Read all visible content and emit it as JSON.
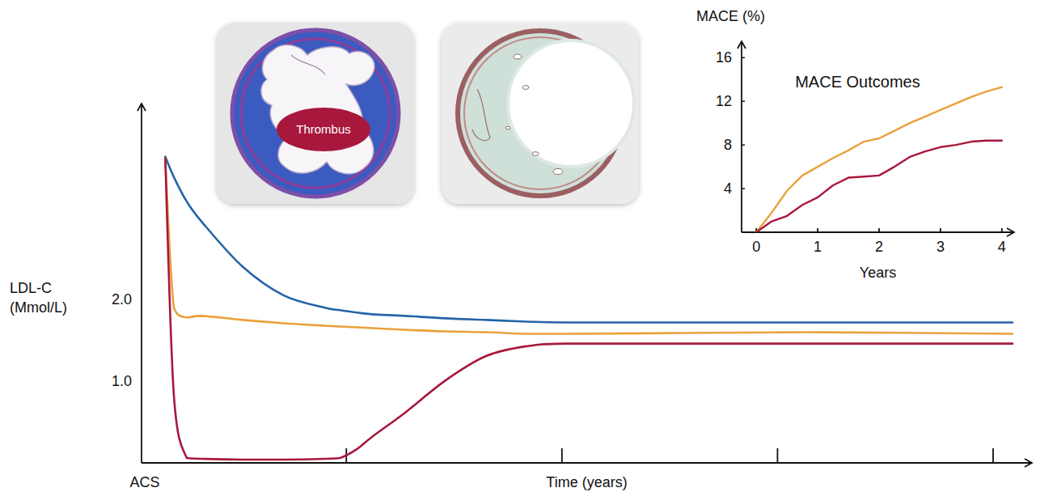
{
  "chart_data": [
    {
      "type": "line",
      "x_label": "Time (years)",
      "y_label": "LDL-C (Mmol/L)",
      "annotations": [
        "ACS"
      ],
      "x": [
        0.16,
        0.2,
        0.26,
        0.33,
        0.52,
        0.71,
        0.9,
        0.97,
        1.05,
        1.12,
        1.27,
        1.46,
        1.65,
        1.84,
        2.02,
        2.55,
        3.15,
        4.09
      ],
      "series": [
        {
          "color": "#2565a8",
          "values": [
            3.75,
            3.5,
            3.2,
            2.95,
            2.4,
            2.05,
            1.9,
            1.87,
            1.84,
            1.82,
            1.8,
            1.77,
            1.75,
            1.73,
            1.72,
            1.72,
            1.72,
            1.72
          ]
        },
        {
          "color": "#e9a13b",
          "values": [
            3.73,
            1.9,
            1.78,
            1.8,
            1.75,
            1.71,
            1.68,
            1.67,
            1.66,
            1.65,
            1.63,
            1.61,
            1.6,
            1.58,
            1.58,
            1.59,
            1.6,
            1.58
          ]
        },
        {
          "color": "#a8183c",
          "values": [
            3.73,
            0.83,
            0.06,
            0.05,
            0.04,
            0.04,
            0.05,
            0.06,
            0.17,
            0.32,
            0.61,
            1.01,
            1.31,
            1.43,
            1.46,
            1.46,
            1.46,
            1.46
          ]
        }
      ],
      "xlim": [
        0.05,
        4.18
      ],
      "ylim": [
        0,
        4.4
      ],
      "xticks": [
        1,
        2,
        3,
        4
      ],
      "yticks": [
        {
          "value": 1,
          "label": "1.0"
        },
        {
          "value": 2,
          "label": "2.0"
        }
      ],
      "tick_labels": "y"
    },
    {
      "type": "line",
      "title": "MACE Outcomes",
      "x_label": "Years",
      "y_label": "MACE (%)",
      "x": [
        0,
        0.25,
        0.5,
        0.75,
        1.0,
        1.25,
        1.5,
        1.75,
        2.0,
        2.25,
        2.5,
        2.75,
        3.0,
        3.25,
        3.5,
        3.75,
        4.0
      ],
      "series": [
        {
          "color": "#e9a13b",
          "values": [
            0,
            1.8,
            3.8,
            5.2,
            6.0,
            6.8,
            7.5,
            8.3,
            8.6,
            9.3,
            10.0,
            10.6,
            11.2,
            11.8,
            12.4,
            12.9,
            13.3
          ]
        },
        {
          "color": "#a8183c",
          "values": [
            0,
            1.0,
            1.5,
            2.5,
            3.2,
            4.3,
            5.0,
            5.1,
            5.2,
            6.0,
            6.9,
            7.4,
            7.8,
            8.0,
            8.3,
            8.4,
            8.4
          ]
        }
      ],
      "xlim": [
        -0.24,
        4.2
      ],
      "ylim": [
        0,
        17.5
      ],
      "xticks": [
        0,
        1,
        2,
        3,
        4
      ],
      "yticks": [
        4,
        8,
        12,
        16
      ]
    }
  ],
  "illustration_labels": [
    "Thrombus"
  ]
}
